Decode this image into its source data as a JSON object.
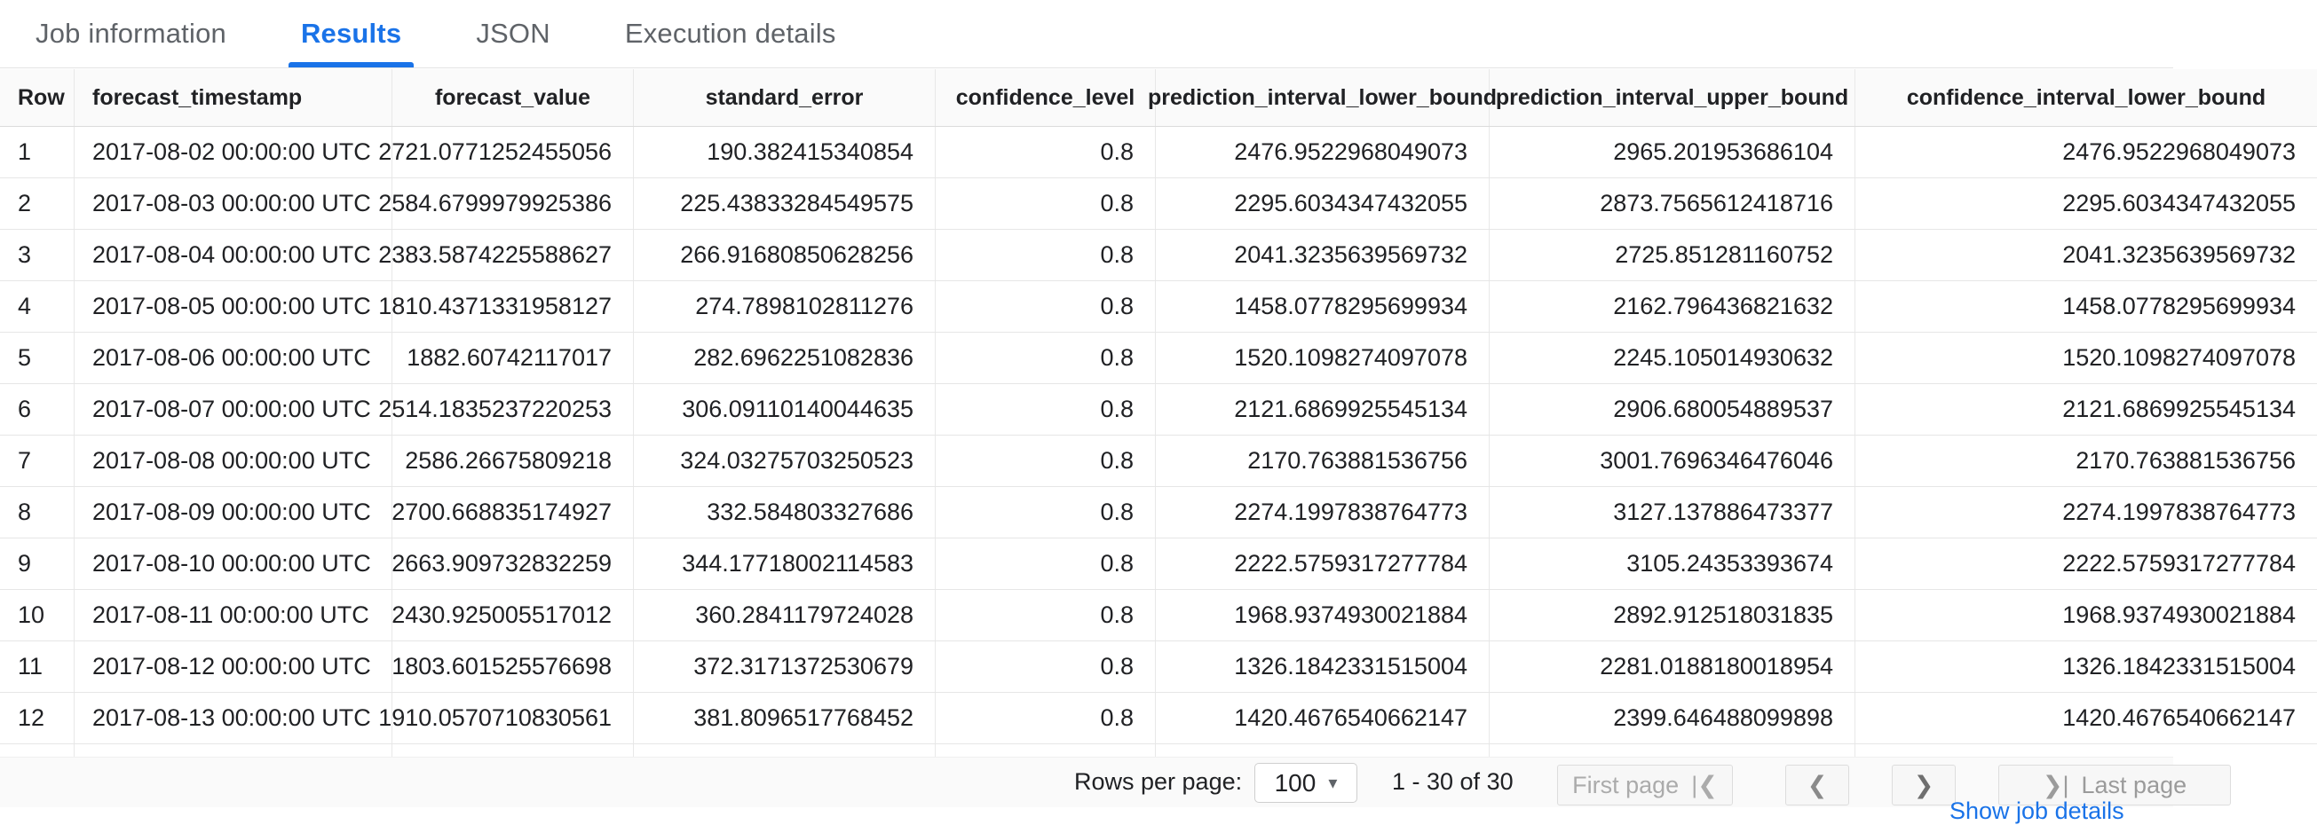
{
  "tabs": [
    {
      "label": "Job information",
      "active": false
    },
    {
      "label": "Results",
      "active": true
    },
    {
      "label": "JSON",
      "active": false
    },
    {
      "label": "Execution details",
      "active": false
    }
  ],
  "table": {
    "columns": [
      {
        "key": "row",
        "label": "Row",
        "align": "left"
      },
      {
        "key": "forecast_timestamp",
        "label": "forecast_timestamp",
        "align": "left"
      },
      {
        "key": "forecast_value",
        "label": "forecast_value",
        "align": "right"
      },
      {
        "key": "standard_error",
        "label": "standard_error",
        "align": "right"
      },
      {
        "key": "confidence_level",
        "label": "confidence_level",
        "align": "right"
      },
      {
        "key": "prediction_interval_lower_bound",
        "label": "prediction_interval_lower_bound",
        "align": "right"
      },
      {
        "key": "prediction_interval_upper_bound",
        "label": "prediction_interval_upper_bound",
        "align": "right"
      },
      {
        "key": "confidence_interval_lower_bound",
        "label": "confidence_interval_lower_bound",
        "align": "right"
      }
    ],
    "rows": [
      {
        "row": "1",
        "forecast_timestamp": "2017-08-02 00:00:00 UTC",
        "forecast_value": "2721.0771252455056",
        "standard_error": "190.382415340854",
        "confidence_level": "0.8",
        "prediction_interval_lower_bound": "2476.9522968049073",
        "prediction_interval_upper_bound": "2965.201953686104",
        "confidence_interval_lower_bound": "2476.9522968049073"
      },
      {
        "row": "2",
        "forecast_timestamp": "2017-08-03 00:00:00 UTC",
        "forecast_value": "2584.6799979925386",
        "standard_error": "225.43833284549575",
        "confidence_level": "0.8",
        "prediction_interval_lower_bound": "2295.6034347432055",
        "prediction_interval_upper_bound": "2873.7565612418716",
        "confidence_interval_lower_bound": "2295.6034347432055"
      },
      {
        "row": "3",
        "forecast_timestamp": "2017-08-04 00:00:00 UTC",
        "forecast_value": "2383.5874225588627",
        "standard_error": "266.91680850628256",
        "confidence_level": "0.8",
        "prediction_interval_lower_bound": "2041.3235639569732",
        "prediction_interval_upper_bound": "2725.851281160752",
        "confidence_interval_lower_bound": "2041.3235639569732"
      },
      {
        "row": "4",
        "forecast_timestamp": "2017-08-05 00:00:00 UTC",
        "forecast_value": "1810.4371331958127",
        "standard_error": "274.7898102811276",
        "confidence_level": "0.8",
        "prediction_interval_lower_bound": "1458.0778295699934",
        "prediction_interval_upper_bound": "2162.796436821632",
        "confidence_interval_lower_bound": "1458.0778295699934"
      },
      {
        "row": "5",
        "forecast_timestamp": "2017-08-06 00:00:00 UTC",
        "forecast_value": "1882.60742117017",
        "standard_error": "282.6962251082836",
        "confidence_level": "0.8",
        "prediction_interval_lower_bound": "1520.1098274097078",
        "prediction_interval_upper_bound": "2245.105014930632",
        "confidence_interval_lower_bound": "1520.1098274097078"
      },
      {
        "row": "6",
        "forecast_timestamp": "2017-08-07 00:00:00 UTC",
        "forecast_value": "2514.1835237220253",
        "standard_error": "306.09110140044635",
        "confidence_level": "0.8",
        "prediction_interval_lower_bound": "2121.6869925545134",
        "prediction_interval_upper_bound": "2906.680054889537",
        "confidence_interval_lower_bound": "2121.6869925545134"
      },
      {
        "row": "7",
        "forecast_timestamp": "2017-08-08 00:00:00 UTC",
        "forecast_value": "2586.26675809218",
        "standard_error": "324.03275703250523",
        "confidence_level": "0.8",
        "prediction_interval_lower_bound": "2170.763881536756",
        "prediction_interval_upper_bound": "3001.7696346476046",
        "confidence_interval_lower_bound": "2170.763881536756"
      },
      {
        "row": "8",
        "forecast_timestamp": "2017-08-09 00:00:00 UTC",
        "forecast_value": "2700.668835174927",
        "standard_error": "332.584803327686",
        "confidence_level": "0.8",
        "prediction_interval_lower_bound": "2274.1997838764773",
        "prediction_interval_upper_bound": "3127.137886473377",
        "confidence_interval_lower_bound": "2274.1997838764773"
      },
      {
        "row": "9",
        "forecast_timestamp": "2017-08-10 00:00:00 UTC",
        "forecast_value": "2663.909732832259",
        "standard_error": "344.17718002114583",
        "confidence_level": "0.8",
        "prediction_interval_lower_bound": "2222.5759317277784",
        "prediction_interval_upper_bound": "3105.24353393674",
        "confidence_interval_lower_bound": "2222.5759317277784"
      },
      {
        "row": "10",
        "forecast_timestamp": "2017-08-11 00:00:00 UTC",
        "forecast_value": "2430.925005517012",
        "standard_error": "360.2841179724028",
        "confidence_level": "0.8",
        "prediction_interval_lower_bound": "1968.9374930021884",
        "prediction_interval_upper_bound": "2892.912518031835",
        "confidence_interval_lower_bound": "1968.9374930021884"
      },
      {
        "row": "11",
        "forecast_timestamp": "2017-08-12 00:00:00 UTC",
        "forecast_value": "1803.601525576698",
        "standard_error": "372.3171372530679",
        "confidence_level": "0.8",
        "prediction_interval_lower_bound": "1326.1842331515004",
        "prediction_interval_upper_bound": "2281.0188180018954",
        "confidence_interval_lower_bound": "1326.1842331515004"
      },
      {
        "row": "12",
        "forecast_timestamp": "2017-08-13 00:00:00 UTC",
        "forecast_value": "1910.0570710830561",
        "standard_error": "381.8096517768452",
        "confidence_level": "0.8",
        "prediction_interval_lower_bound": "1420.4676540662147",
        "prediction_interval_upper_bound": "2399.646488099898",
        "confidence_interval_lower_bound": "1420.4676540662147"
      }
    ]
  },
  "pagination": {
    "rows_per_page_label": "Rows per page:",
    "page_size": "100",
    "caret_icon": "▾",
    "range_label": "1 - 30 of 30",
    "first_page_label": "First page",
    "first_page_icon": "|❮",
    "prev_icon": "❮",
    "next_icon": "❯",
    "last_page_icon": "❯|",
    "last_page_label": "Last page"
  },
  "clipped_link_text": "Show job details",
  "colors": {
    "accent_blue": "#1a73e8",
    "tab_inactive": "#5f6368",
    "text": "#202124",
    "header_bg": "#fafafa",
    "border": "#e6e6e6"
  }
}
